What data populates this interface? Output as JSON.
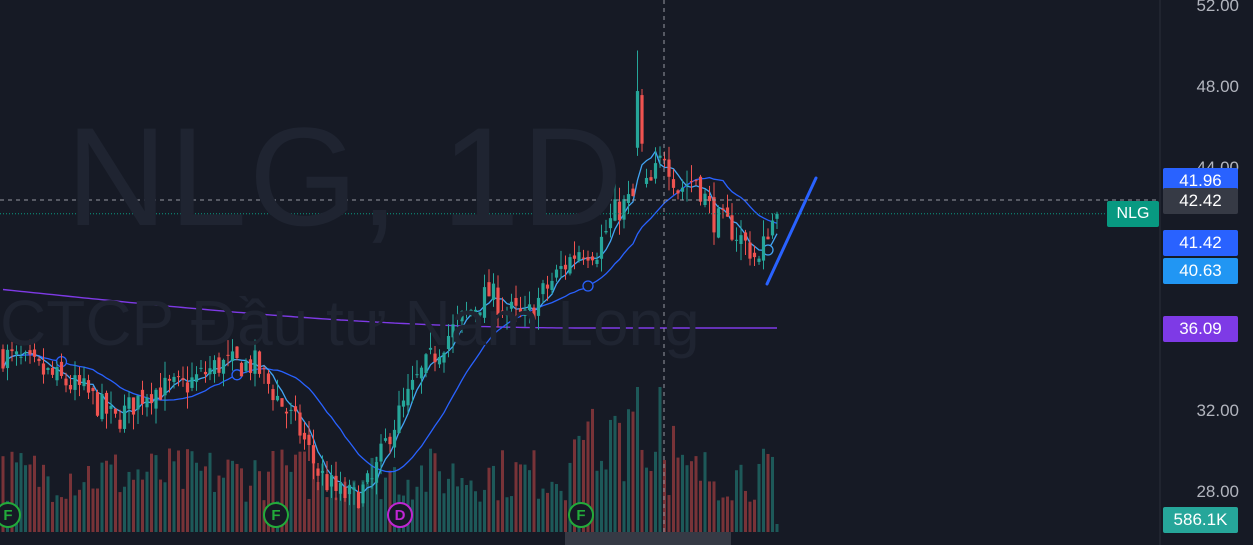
{
  "watermark": {
    "symbol": "NLG, 1D",
    "company": "CTCP Đầu tư Nam Long"
  },
  "symbol_tag": {
    "label": "NLG",
    "color": "#089981"
  },
  "price_axis": {
    "ticks": [
      "52.00",
      "48.00",
      "44.00",
      "32.00",
      "28.00"
    ]
  },
  "price_tags": [
    {
      "label": "41.96",
      "value": 41.96,
      "color": "#2962ff"
    },
    {
      "label": "42.42",
      "value": 42.42,
      "color": "#363a45"
    },
    {
      "label": "41.42",
      "value": 41.42,
      "color": "#2962ff"
    },
    {
      "label": "40.63",
      "value": 40.63,
      "color": "#2196f3"
    },
    {
      "label": "36.09",
      "value": 36.09,
      "color": "#7e3ae6"
    }
  ],
  "volume_tag": {
    "label": "586.1K",
    "color": "#26a69a"
  },
  "events": [
    {
      "label": "F",
      "color": "#22ab3a"
    },
    {
      "label": "F",
      "color": "#22ab3a"
    },
    {
      "label": "D",
      "color": "#c026d3"
    },
    {
      "label": "F",
      "color": "#22ab3a"
    }
  ],
  "chart_data": {
    "type": "candlestick",
    "y_range": [
      26.5,
      53
    ],
    "crosshair_price": 42.42,
    "last_price": 41.74,
    "colors": {
      "up": "#26a69a",
      "down": "#ef5350",
      "ma_fast": "#42a5f5",
      "ma_mid": "#2962ff",
      "ma_slow": "#7e3ae6"
    },
    "ohlc_keypoints": [
      [
        0,
        34.8
      ],
      [
        10,
        33.8
      ],
      [
        18,
        33.0
      ],
      [
        25,
        31.5
      ],
      [
        32,
        33.0
      ],
      [
        40,
        33.2
      ],
      [
        48,
        34.3
      ],
      [
        56,
        34.3
      ],
      [
        60,
        33.0
      ],
      [
        66,
        31.0
      ],
      [
        70,
        29.0
      ],
      [
        74,
        28.0
      ],
      [
        78,
        27.7
      ],
      [
        82,
        28.5
      ],
      [
        86,
        31.0
      ],
      [
        92,
        33.5
      ],
      [
        98,
        35.5
      ],
      [
        104,
        37.0
      ],
      [
        108,
        37.8
      ],
      [
        112,
        37.0
      ],
      [
        116,
        36.5
      ],
      [
        120,
        37.8
      ],
      [
        124,
        39.0
      ],
      [
        128,
        40.0
      ],
      [
        132,
        40.0
      ],
      [
        136,
        41.8
      ],
      [
        140,
        42.5
      ],
      [
        144,
        43.2
      ],
      [
        147,
        44.8
      ],
      [
        150,
        43.0
      ],
      [
        154,
        43.5
      ],
      [
        158,
        41.5
      ],
      [
        162,
        41.0
      ],
      [
        166,
        40.0
      ],
      [
        168,
        39.3
      ],
      [
        170,
        41.0
      ],
      [
        172,
        41.7
      ]
    ]
  }
}
